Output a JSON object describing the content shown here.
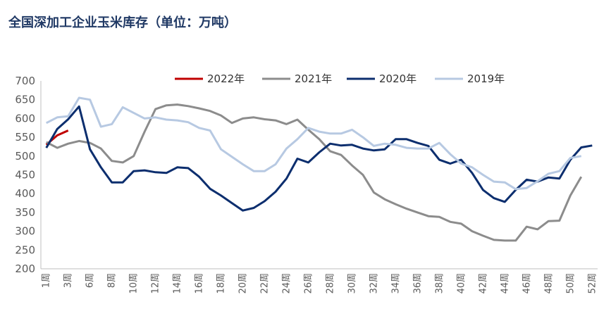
{
  "chart_data": {
    "type": "line",
    "title": "全国深加工企业玉米库存（单位：万吨）",
    "categories": [
      "1周",
      null,
      "3周",
      null,
      "6周",
      null,
      "8周",
      null,
      "10周",
      null,
      "12周",
      null,
      "14周",
      null,
      "16周",
      null,
      "18周",
      null,
      "20周",
      null,
      "22周",
      null,
      "24周",
      null,
      "26周",
      null,
      "28周",
      null,
      "30周",
      null,
      "32周",
      null,
      "34周",
      null,
      "36周",
      null,
      "38周",
      null,
      "40周",
      null,
      "42周",
      null,
      "44周",
      null,
      "46周",
      null,
      "48周",
      null,
      "50周",
      null,
      "52周"
    ],
    "series": [
      {
        "name": "2022年",
        "color": "#c00000",
        "values": [
          530,
          555,
          568,
          null,
          null,
          null,
          null,
          null,
          null,
          null,
          null,
          null,
          null,
          null,
          null,
          null,
          null,
          null,
          null,
          null,
          null,
          null,
          null,
          null,
          null,
          null,
          null,
          null,
          null,
          null,
          null,
          null,
          null,
          null,
          null,
          null,
          null,
          null,
          null,
          null,
          null,
          null,
          null,
          null,
          null,
          null,
          null,
          null,
          null,
          null,
          null
        ]
      },
      {
        "name": "2021年",
        "color": "#8c8c8c",
        "values": [
          537,
          522,
          533,
          540,
          535,
          520,
          487,
          483,
          500,
          565,
          625,
          635,
          637,
          633,
          627,
          620,
          608,
          588,
          600,
          603,
          598,
          595,
          585,
          597,
          570,
          545,
          513,
          503,
          475,
          450,
          403,
          385,
          372,
          360,
          350,
          340,
          338,
          325,
          320,
          300,
          288,
          277,
          275,
          275,
          312,
          305,
          327,
          328,
          395,
          445,
          null
        ]
      },
      {
        "name": "2020年",
        "color": "#0c2e6e",
        "values": [
          522,
          572,
          598,
          632,
          518,
          470,
          430,
          430,
          460,
          462,
          457,
          455,
          470,
          468,
          445,
          413,
          395,
          375,
          355,
          362,
          380,
          405,
          440,
          493,
          483,
          510,
          533,
          528,
          530,
          520,
          515,
          518,
          545,
          545,
          535,
          527,
          490,
          480,
          490,
          455,
          410,
          388,
          378,
          410,
          437,
          432,
          443,
          440,
          490,
          523,
          528
        ]
      },
      {
        "name": "2019年",
        "color": "#b7c9e2",
        "values": [
          588,
          603,
          606,
          655,
          650,
          578,
          585,
          630,
          615,
          600,
          603,
          597,
          595,
          590,
          575,
          568,
          518,
          498,
          478,
          460,
          460,
          478,
          520,
          545,
          575,
          565,
          560,
          560,
          570,
          550,
          527,
          533,
          530,
          522,
          520,
          520,
          535,
          505,
          480,
          470,
          450,
          432,
          430,
          412,
          415,
          433,
          453,
          460,
          495,
          500,
          null
        ]
      }
    ],
    "ylim": [
      200,
      700
    ],
    "yticks": [
      200,
      250,
      300,
      350,
      400,
      450,
      500,
      550,
      600,
      650,
      700
    ],
    "legend": "top"
  }
}
